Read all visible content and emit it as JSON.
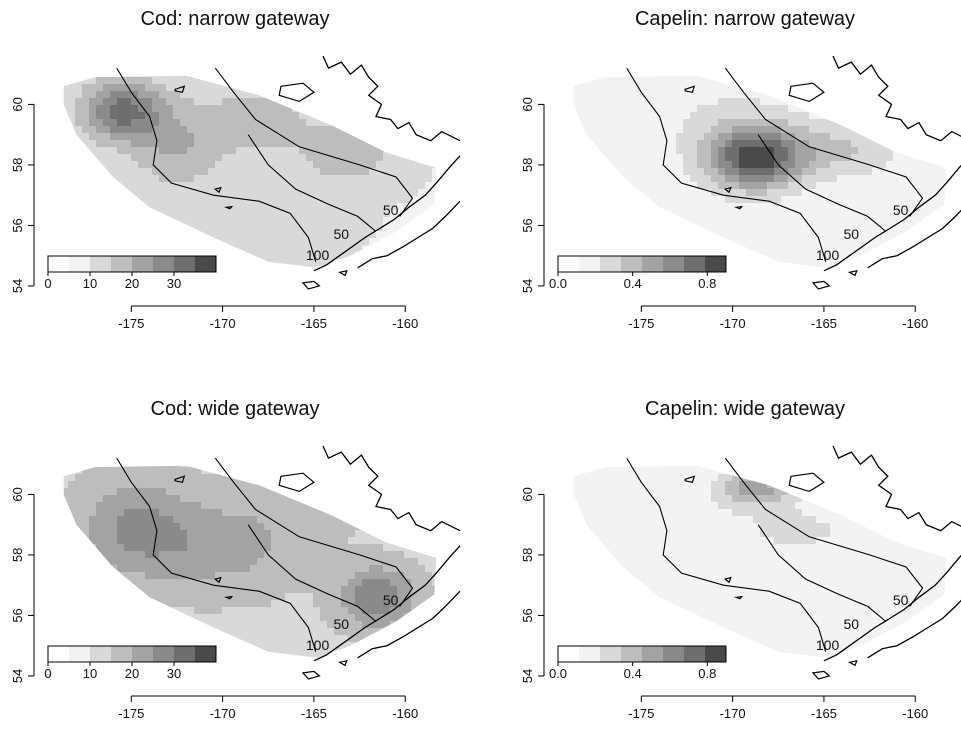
{
  "panels": [
    {
      "id": "cod-narrow",
      "title": "Cod: narrow gateway",
      "species": "cod",
      "gateway": "narrow",
      "legend_ticks": [
        "0",
        "10",
        "20",
        "30"
      ],
      "legend_values": [
        0,
        10,
        20,
        30
      ],
      "legend_max": 40
    },
    {
      "id": "capelin-narrow",
      "title": "Capelin: narrow gateway",
      "species": "capelin",
      "gateway": "narrow",
      "legend_ticks": [
        "0.0",
        "0.4",
        "0.8"
      ],
      "legend_values": [
        0,
        0.4,
        0.8
      ],
      "legend_max": 0.9
    },
    {
      "id": "cod-wide",
      "title": "Cod: wide gateway",
      "species": "cod",
      "gateway": "wide",
      "legend_ticks": [
        "0",
        "10",
        "20",
        "30"
      ],
      "legend_values": [
        0,
        10,
        20,
        30
      ],
      "legend_max": 40
    },
    {
      "id": "capelin-wide",
      "title": "Capelin: wide gateway",
      "species": "capelin",
      "gateway": "wide",
      "legend_ticks": [
        "0.0",
        "0.4",
        "0.8"
      ],
      "legend_values": [
        0,
        0.4,
        0.8
      ],
      "legend_max": 0.9
    }
  ],
  "axes": {
    "x_ticks": [
      -175,
      -170,
      -165,
      -160
    ],
    "x_tick_labels": [
      "-175",
      "-170",
      "-165",
      "-160"
    ],
    "y_ticks": [
      54,
      56,
      58,
      60
    ],
    "y_tick_labels": [
      "54",
      "56",
      "58",
      "60"
    ],
    "x_range": [
      -180,
      -157
    ],
    "y_range": [
      53.8,
      61.6
    ]
  },
  "contour_labels": [
    "50",
    "50",
    "100"
  ],
  "colors": {
    "shade_levels": [
      "#ffffff",
      "#f3f3f3",
      "#d9d9d9",
      "#bdbdbd",
      "#a3a3a3",
      "#8a8a8a",
      "#6e6e6e",
      "#4a4a4a",
      "#2e2e2e"
    ],
    "coast": "#000000",
    "contour": "#000000"
  }
}
